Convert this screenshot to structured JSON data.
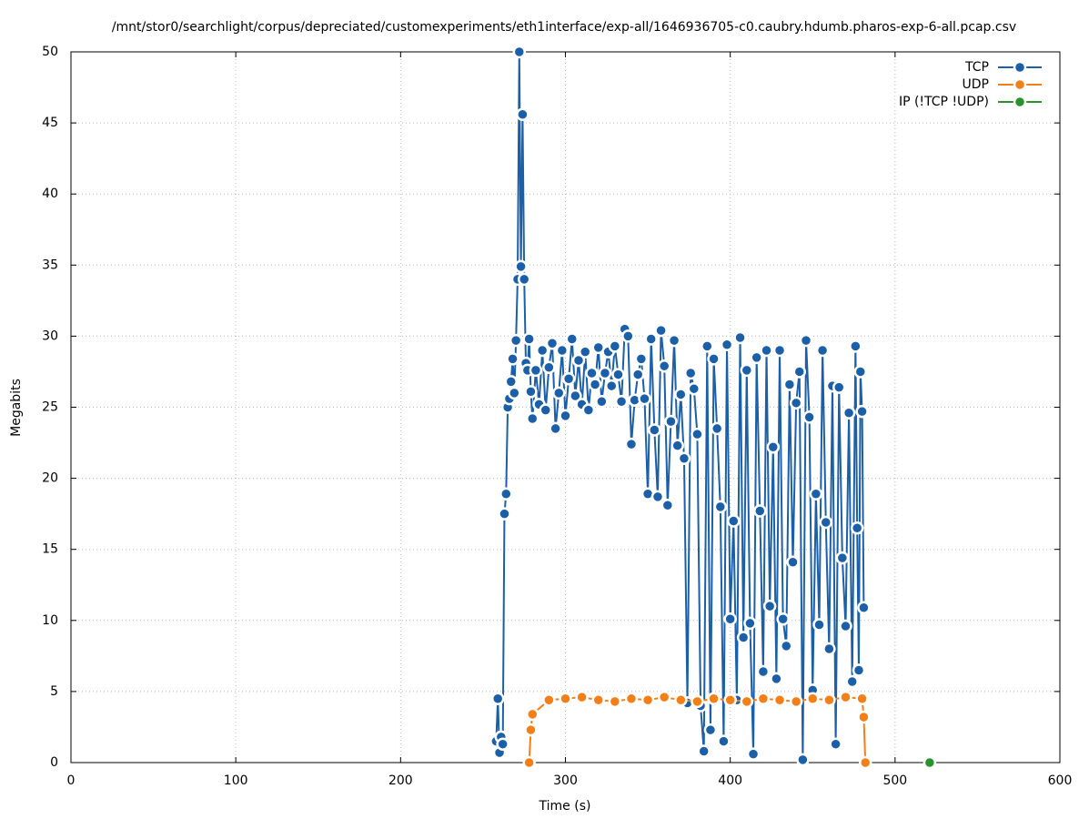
{
  "chart_data": {
    "type": "line",
    "title": "/mnt/stor0/searchlight/corpus/depreciated/customexperiments/eth1interface/exp-all/1646936705-c0.caubry.hdumb.pharos-exp-6-all.pcap.csv",
    "x_label": "Time (s)",
    "y_label": "Megabits",
    "xlim": [
      0,
      600
    ],
    "xticks": [
      0,
      100,
      200,
      300,
      400,
      500,
      600
    ],
    "ylim": [
      0,
      50
    ],
    "yticks": [
      0,
      5,
      10,
      15,
      20,
      25,
      30,
      35,
      40,
      45,
      50
    ],
    "grid": true,
    "legend": "top-right",
    "series": [
      {
        "name": "TCP",
        "color": "#1a5fa8",
        "x": [
          258,
          259,
          260,
          261,
          262,
          263,
          264,
          265,
          266,
          267,
          268,
          269,
          270,
          271,
          272,
          273,
          274,
          275,
          276,
          277,
          278,
          279,
          280,
          282,
          284,
          286,
          288,
          290,
          292,
          294,
          296,
          298,
          300,
          302,
          304,
          306,
          308,
          310,
          312,
          314,
          316,
          318,
          320,
          322,
          324,
          326,
          328,
          330,
          332,
          334,
          336,
          338,
          340,
          342,
          344,
          346,
          348,
          350,
          352,
          354,
          356,
          358,
          360,
          362,
          364,
          366,
          368,
          370,
          372,
          374,
          376,
          378,
          380,
          382,
          384,
          386,
          388,
          390,
          392,
          394,
          396,
          398,
          400,
          402,
          404,
          406,
          408,
          410,
          412,
          414,
          416,
          418,
          420,
          422,
          424,
          426,
          428,
          430,
          432,
          434,
          436,
          438,
          440,
          442,
          444,
          446,
          448,
          450,
          452,
          454,
          456,
          458,
          460,
          462,
          464,
          466,
          468,
          470,
          472,
          474,
          476,
          477,
          478,
          479,
          480,
          481
        ],
        "values": [
          1.5,
          4.5,
          0.7,
          1.8,
          1.3,
          17.5,
          18.9,
          25,
          25.6,
          26.8,
          28.4,
          26,
          29.7,
          34,
          50,
          34.9,
          45.6,
          34,
          28.1,
          27.6,
          29.8,
          26.1,
          24.2,
          27.6,
          25.2,
          29,
          24.8,
          27.8,
          29.5,
          23.5,
          26,
          29,
          24.4,
          27,
          29.8,
          25.8,
          28.3,
          25.2,
          28.9,
          24.8,
          27.4,
          26.6,
          29.2,
          25.4,
          27.4,
          28.9,
          26.5,
          29.3,
          27.3,
          25.4,
          30.5,
          30,
          22.4,
          25.5,
          27.3,
          28.4,
          25.6,
          18.9,
          29.8,
          23.4,
          18.7,
          30.4,
          27.9,
          18.1,
          24,
          29.7,
          22.3,
          25.9,
          21.4,
          4.2,
          27.4,
          26.3,
          23.1,
          4,
          0.8,
          29.3,
          2.3,
          28.4,
          23.5,
          18,
          1.5,
          29.4,
          10.1,
          17,
          4.4,
          29.9,
          8.8,
          27.6,
          9.8,
          0.6,
          28.5,
          17.7,
          6.4,
          29,
          11,
          22.2,
          5.9,
          29,
          10.1,
          8.2,
          26.6,
          14.1,
          25.3,
          27.5,
          0.2,
          29.7,
          24.3,
          5.1,
          18.9,
          9.7,
          29,
          16.9,
          8,
          26.5,
          1.3,
          26.4,
          14.4,
          9.6,
          24.6,
          5.7,
          29.3,
          16.5,
          6.5,
          27.5,
          24.7,
          10.9
        ]
      },
      {
        "name": "UDP",
        "color": "#f57f17",
        "x": [
          278,
          279,
          280,
          290,
          300,
          310,
          320,
          330,
          340,
          350,
          360,
          370,
          380,
          390,
          400,
          410,
          420,
          430,
          440,
          450,
          460,
          470,
          480,
          481,
          482
        ],
        "values": [
          0,
          2.3,
          3.4,
          4.4,
          4.5,
          4.6,
          4.4,
          4.3,
          4.5,
          4.4,
          4.6,
          4.4,
          4.3,
          4.5,
          4.4,
          4.3,
          4.5,
          4.4,
          4.3,
          4.5,
          4.4,
          4.6,
          4.5,
          3.2,
          0
        ]
      },
      {
        "name": "IP (!TCP  !UDP)",
        "color": "#2a922a",
        "x": [
          521
        ],
        "values": [
          0
        ]
      }
    ]
  }
}
